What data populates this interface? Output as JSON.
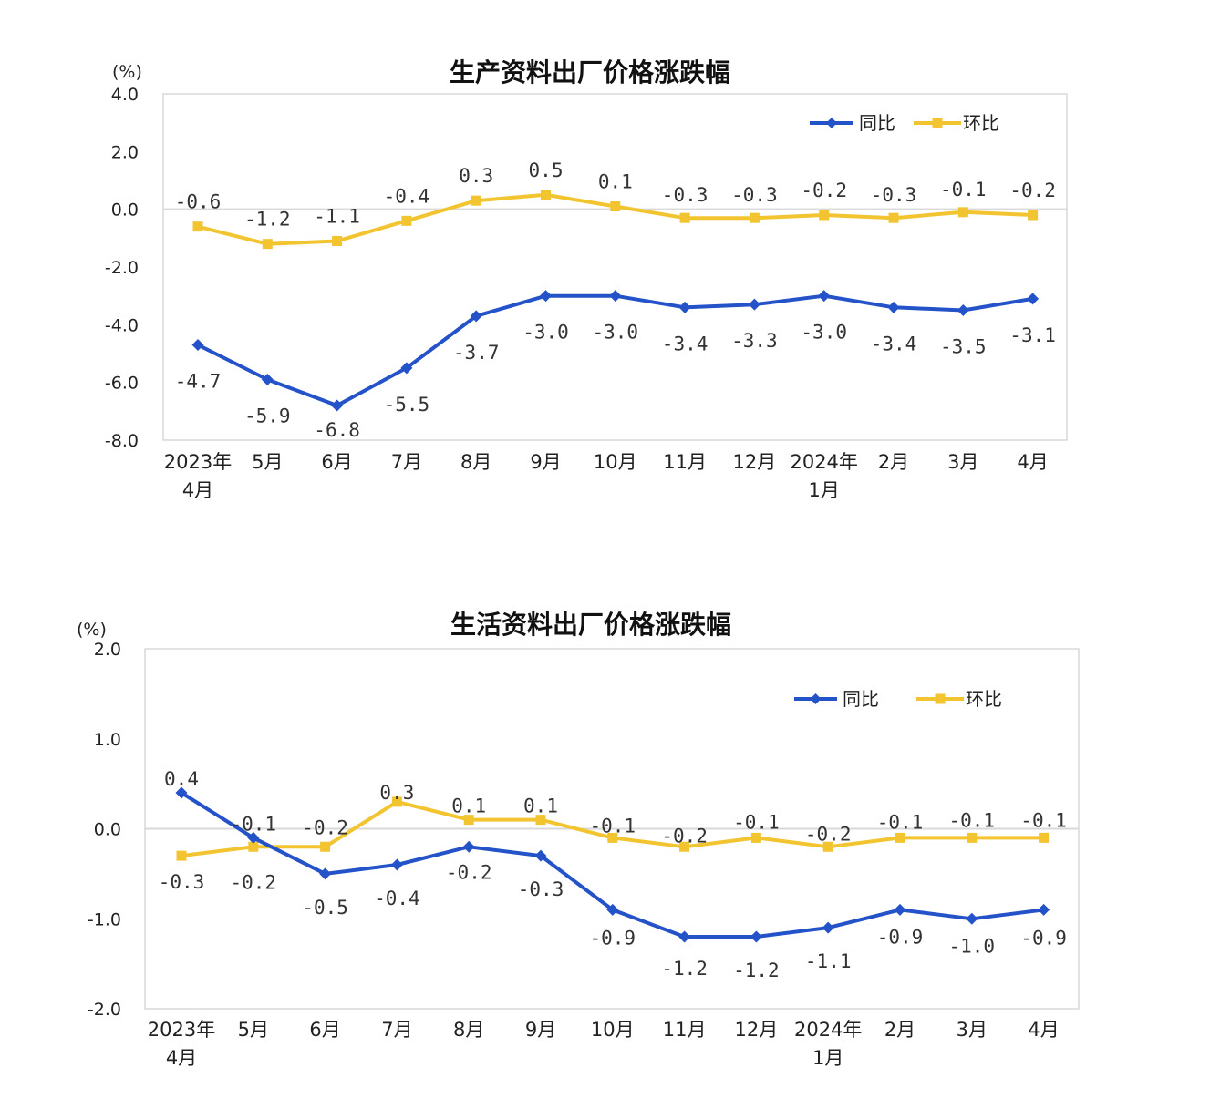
{
  "colors": {
    "yoy": "#2452C8",
    "mom": "#F2C530",
    "frame": "#D9D9D9",
    "zero": "#D9D9D9"
  },
  "chart_data": [
    {
      "type": "line",
      "title": "生产资料出厂价格涨跌幅",
      "unit": "(%)",
      "ylim": [
        -8,
        4
      ],
      "yticks": [
        "4.0",
        "2.0",
        "0.0",
        "-2.0",
        "-4.0",
        "-6.0",
        "-8.0"
      ],
      "categories": [
        [
          "2023年",
          "4月"
        ],
        [
          "5月"
        ],
        [
          "6月"
        ],
        [
          "7月"
        ],
        [
          "8月"
        ],
        [
          "9月"
        ],
        [
          "10月"
        ],
        [
          "11月"
        ],
        [
          "12月"
        ],
        [
          "2024年",
          "1月"
        ],
        [
          "2月"
        ],
        [
          "3月"
        ],
        [
          "4月"
        ]
      ],
      "legend_position": "top-right",
      "series": [
        {
          "name": "同比",
          "values": [
            -4.7,
            -5.9,
            -6.8,
            -5.5,
            -3.7,
            -3.0,
            -3.0,
            -3.4,
            -3.3,
            -3.0,
            -3.4,
            -3.5,
            -3.1
          ],
          "labels": [
            "-4.7",
            "-5.9",
            "-6.8",
            "-5.5",
            "-3.7",
            "-3.0",
            "-3.0",
            "-3.4",
            "-3.3",
            "-3.0",
            "-3.4",
            "-3.5",
            "-3.1"
          ]
        },
        {
          "name": "环比",
          "values": [
            -0.6,
            -1.2,
            -1.1,
            -0.4,
            0.3,
            0.5,
            0.1,
            -0.3,
            -0.3,
            -0.2,
            -0.3,
            -0.1,
            -0.2
          ],
          "labels": [
            "-0.6",
            "-1.2",
            "-1.1",
            "-0.4",
            "0.3",
            "0.5",
            "0.1",
            "-0.3",
            "-0.3",
            "-0.2",
            "-0.3",
            "-0.1",
            "-0.2"
          ]
        }
      ]
    },
    {
      "type": "line",
      "title": "生活资料出厂价格涨跌幅",
      "unit": "(%)",
      "ylim": [
        -2,
        2
      ],
      "yticks": [
        "2.0",
        "1.0",
        "0.0",
        "-1.0",
        "-2.0"
      ],
      "categories": [
        [
          "2023年",
          "4月"
        ],
        [
          "5月"
        ],
        [
          "6月"
        ],
        [
          "7月"
        ],
        [
          "8月"
        ],
        [
          "9月"
        ],
        [
          "10月"
        ],
        [
          "11月"
        ],
        [
          "12月"
        ],
        [
          "2024年",
          "1月"
        ],
        [
          "2月"
        ],
        [
          "3月"
        ],
        [
          "4月"
        ]
      ],
      "legend_position": "top-right",
      "series": [
        {
          "name": "同比",
          "values": [
            0.4,
            -0.1,
            -0.5,
            -0.4,
            -0.2,
            -0.3,
            -0.9,
            -1.2,
            -1.2,
            -1.1,
            -0.9,
            -1.0,
            -0.9
          ],
          "labels": [
            "0.4",
            "-0.1",
            "-0.5",
            "-0.4",
            "-0.2",
            "-0.3",
            "-0.9",
            "-1.2",
            "-1.2",
            "-1.1",
            "-0.9",
            "-1.0",
            "-0.9"
          ]
        },
        {
          "name": "环比",
          "values": [
            -0.3,
            -0.2,
            -0.2,
            0.3,
            0.1,
            0.1,
            -0.1,
            -0.2,
            -0.1,
            -0.2,
            -0.1,
            -0.1,
            -0.1
          ],
          "labels": [
            "-0.3",
            "-0.2",
            "-0.2",
            "0.3",
            "0.1",
            "0.1",
            "-0.1",
            "-0.2",
            "-0.1",
            "-0.2",
            "-0.1",
            "-0.1",
            "-0.1"
          ]
        }
      ]
    }
  ]
}
